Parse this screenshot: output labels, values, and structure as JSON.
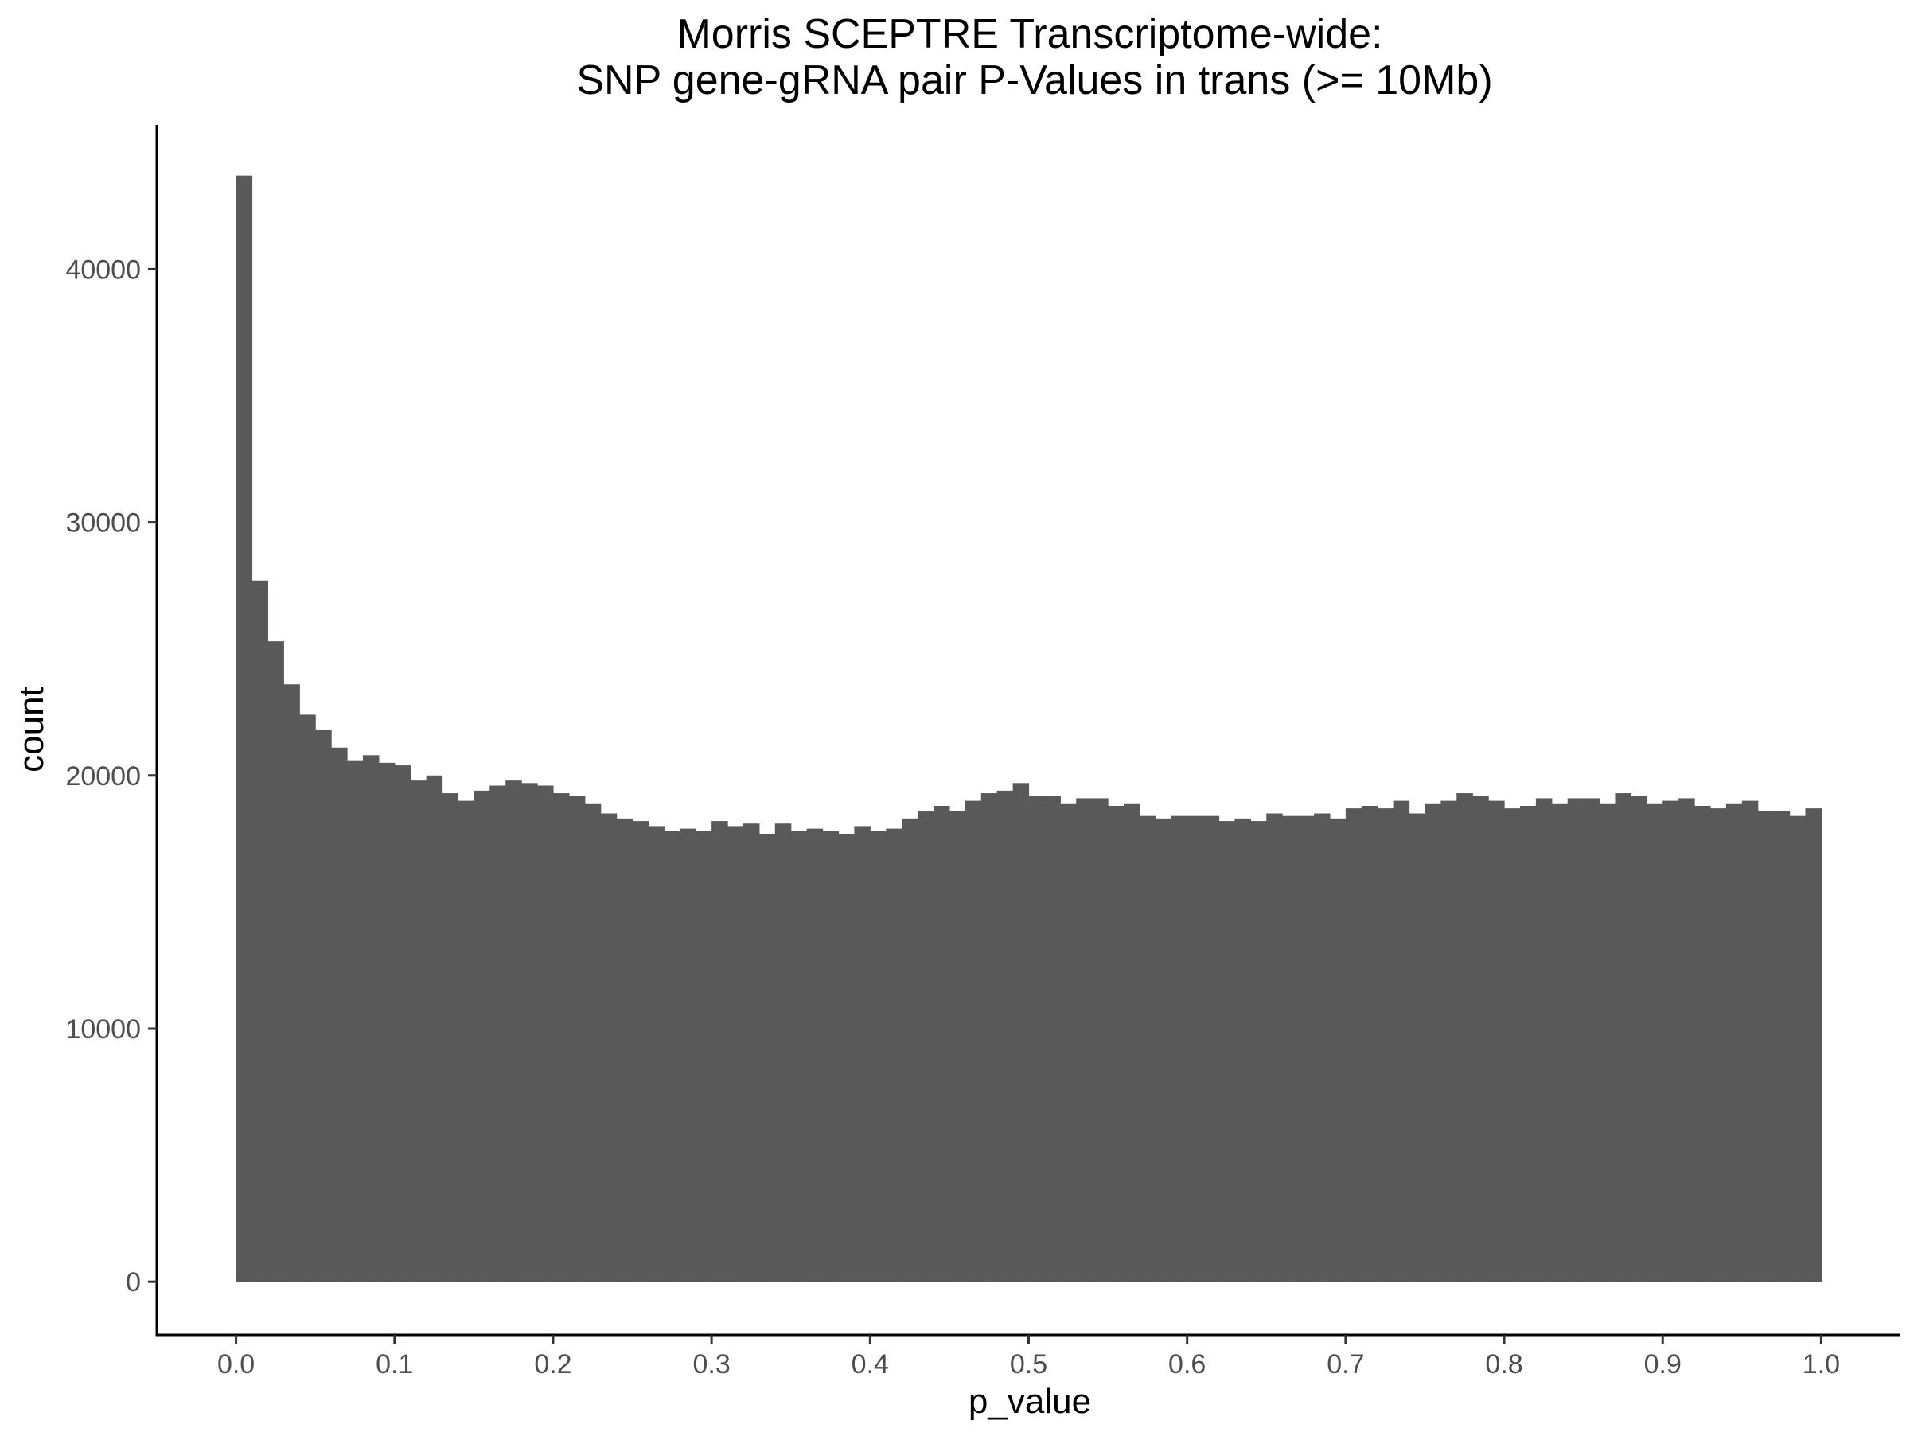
{
  "chart_data": {
    "type": "bar",
    "subtype": "histogram",
    "title": "Morris SCEPTRE Transcriptome-wide:",
    "subtitle": "SNP gene-gRNA pair P-Values in trans (>= 10Mb)",
    "xlabel": "p_value",
    "ylabel": "count",
    "xlim": [
      -0.05,
      1.05
    ],
    "ylim": [
      -2100,
      45700
    ],
    "x_ticks": [
      0.0,
      0.1,
      0.2,
      0.3,
      0.4,
      0.5,
      0.6,
      0.7,
      0.8,
      0.9,
      1.0
    ],
    "x_tick_labels": [
      "0.0",
      "0.1",
      "0.2",
      "0.3",
      "0.4",
      "0.5",
      "0.6",
      "0.7",
      "0.8",
      "0.9",
      "1.0"
    ],
    "y_ticks": [
      0,
      10000,
      20000,
      30000,
      40000
    ],
    "y_tick_labels": [
      "0",
      "10000",
      "20000",
      "30000",
      "40000"
    ],
    "bin_start": 0.0,
    "bin_width": 0.01,
    "bar_color": "#595959",
    "grid": false,
    "values": [
      43700,
      27700,
      25300,
      23600,
      22400,
      21800,
      21100,
      20600,
      20800,
      20500,
      20400,
      19800,
      20000,
      19300,
      19000,
      19400,
      19600,
      19800,
      19700,
      19600,
      19300,
      19200,
      18900,
      18500,
      18300,
      18200,
      18000,
      17800,
      17900,
      17800,
      18200,
      18000,
      18100,
      17700,
      18100,
      17800,
      17900,
      17800,
      17700,
      18000,
      17800,
      17900,
      18300,
      18600,
      18800,
      18600,
      19000,
      19300,
      19400,
      19700,
      19200,
      19200,
      18900,
      19100,
      19100,
      18800,
      18900,
      18400,
      18300,
      18400,
      18400,
      18400,
      18200,
      18300,
      18200,
      18500,
      18400,
      18400,
      18500,
      18300,
      18700,
      18800,
      18700,
      19000,
      18500,
      18900,
      19000,
      19300,
      19200,
      19000,
      18700,
      18800,
      19100,
      18900,
      19100,
      19100,
      18900,
      19300,
      19200,
      18900,
      19000,
      19100,
      18800,
      18700,
      18900,
      19000,
      18600,
      18600,
      18400,
      18700
    ]
  }
}
